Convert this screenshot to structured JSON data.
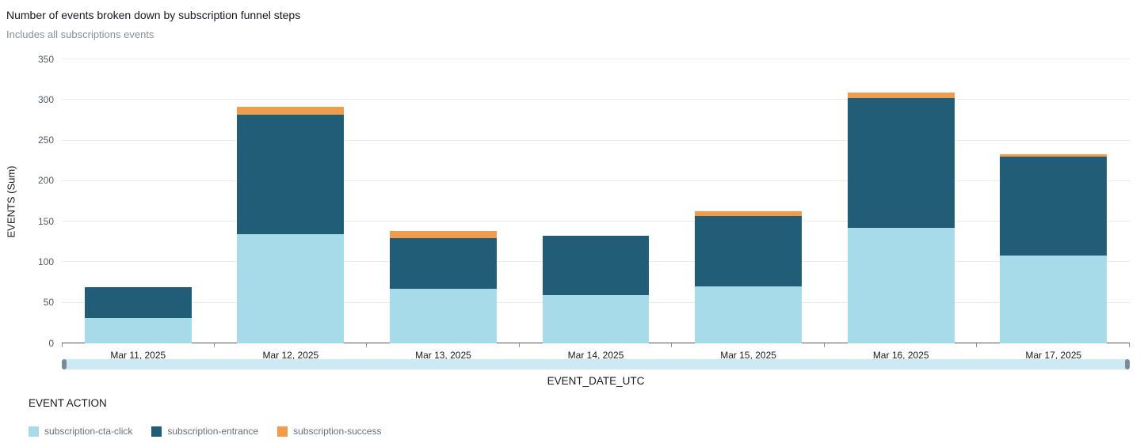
{
  "header": {
    "title": "Number of events broken down by subscription funnel steps",
    "subtitle": "Includes all subscriptions events"
  },
  "legend": {
    "title": "EVENT ACTION"
  },
  "chart_data": {
    "type": "bar",
    "stacked": true,
    "title": "Number of events broken down by subscription funnel steps",
    "subtitle": "Includes all subscriptions events",
    "xlabel": "EVENT_DATE_UTC",
    "ylabel": "EVENTS (Sum)",
    "ylim": [
      0,
      350
    ],
    "yticks": [
      0,
      50,
      100,
      150,
      200,
      250,
      300,
      350
    ],
    "grid": true,
    "legend_position": "bottom-left",
    "categories": [
      "Mar 11, 2025",
      "Mar 12, 2025",
      "Mar 13, 2025",
      "Mar 14, 2025",
      "Mar 15, 2025",
      "Mar 16, 2025",
      "Mar 17, 2025"
    ],
    "series": [
      {
        "name": "subscription-cta-click",
        "color": "#a7dbe9",
        "values": [
          31,
          135,
          67,
          59,
          70,
          142,
          108
        ]
      },
      {
        "name": "subscription-entrance",
        "color": "#225d77",
        "values": [
          38,
          147,
          63,
          74,
          87,
          160,
          122
        ]
      },
      {
        "name": "subscription-success",
        "color": "#f09c4d",
        "values": [
          0,
          10,
          8,
          0,
          6,
          7,
          3
        ]
      }
    ],
    "totals": [
      69,
      292,
      138,
      133,
      163,
      309,
      233
    ]
  }
}
